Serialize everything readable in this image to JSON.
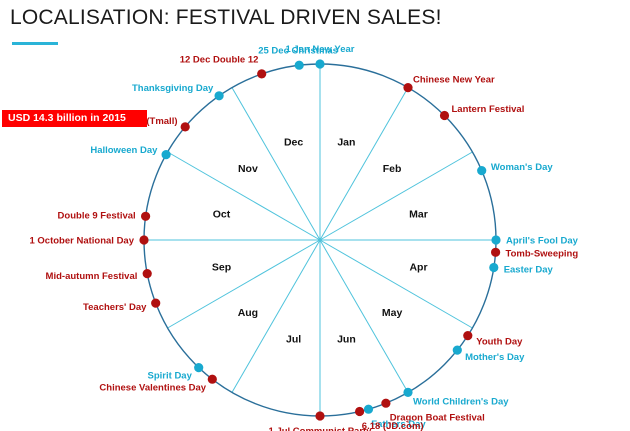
{
  "title": "LOCALISATION: FESTIVAL DRIVEN SALES!",
  "banner": "USD 14.3  billion in 2015",
  "colors": {
    "accent": "#2ab4d8",
    "western": "#18a9cf",
    "chinese": "#b01010",
    "ring": "#2a6f9a",
    "spoke": "#4fc3dc",
    "banner": "#ff0000"
  },
  "months": [
    "Jan",
    "Feb",
    "Mar",
    "Apr",
    "May",
    "Jun",
    "Jul",
    "Aug",
    "Sep",
    "Oct",
    "Nov",
    "Dec"
  ],
  "festivals": [
    {
      "label": "1 Jan New Year",
      "date": "01-01",
      "type": "western"
    },
    {
      "label": "Chinese New Year",
      "date": "02-01",
      "type": "chinese"
    },
    {
      "label": "Lantern Festival",
      "date": "02-15",
      "type": "chinese"
    },
    {
      "label": "Woman's Day",
      "date": "03-08",
      "type": "western"
    },
    {
      "label": "April's Fool Day",
      "date": "04-01",
      "type": "western"
    },
    {
      "label": "Tomb-Sweeping",
      "date": "04-05",
      "type": "chinese"
    },
    {
      "label": "Easter Day",
      "date": "04-10",
      "type": "western"
    },
    {
      "label": "Youth Day",
      "date": "05-04",
      "type": "chinese"
    },
    {
      "label": "Mother's Day",
      "date": "05-10",
      "type": "western"
    },
    {
      "label": "World Children's Day",
      "date": "06-01",
      "type": "western"
    },
    {
      "label": "Dragon Boat Festival",
      "date": "06-09",
      "type": "chinese"
    },
    {
      "label": "Fathers Day",
      "date": "06-15",
      "type": "western"
    },
    {
      "label": "6.18 (JD.com)",
      "date": "06-18",
      "type": "chinese"
    },
    {
      "label": "1 Jul Communist Party",
      "date": "07-01",
      "type": "chinese"
    },
    {
      "label": "Chinese Valentines Day",
      "date": "08-09",
      "type": "chinese"
    },
    {
      "label": "Spirit Day",
      "date": "08-15",
      "type": "western"
    },
    {
      "label": "Teachers' Day",
      "date": "09-10",
      "type": "chinese"
    },
    {
      "label": "Mid-autumn Festival",
      "date": "09-20",
      "type": "chinese"
    },
    {
      "label": "1 October National Day",
      "date": "10-01",
      "type": "chinese"
    },
    {
      "label": "Double 9 Festival",
      "date": "10-09",
      "type": "chinese"
    },
    {
      "label": "Halloween Day",
      "date": "10-31",
      "type": "western"
    },
    {
      "label": "11.11 Singles Day (Tmall)",
      "date": "11-11",
      "type": "chinese"
    },
    {
      "label": "Thanksgiving Day",
      "date": "11-26",
      "type": "western"
    },
    {
      "label": "12 Dec Double 12",
      "date": "12-12",
      "type": "chinese"
    },
    {
      "label": "25 Dec Christmas",
      "date": "12-25",
      "type": "western"
    }
  ]
}
